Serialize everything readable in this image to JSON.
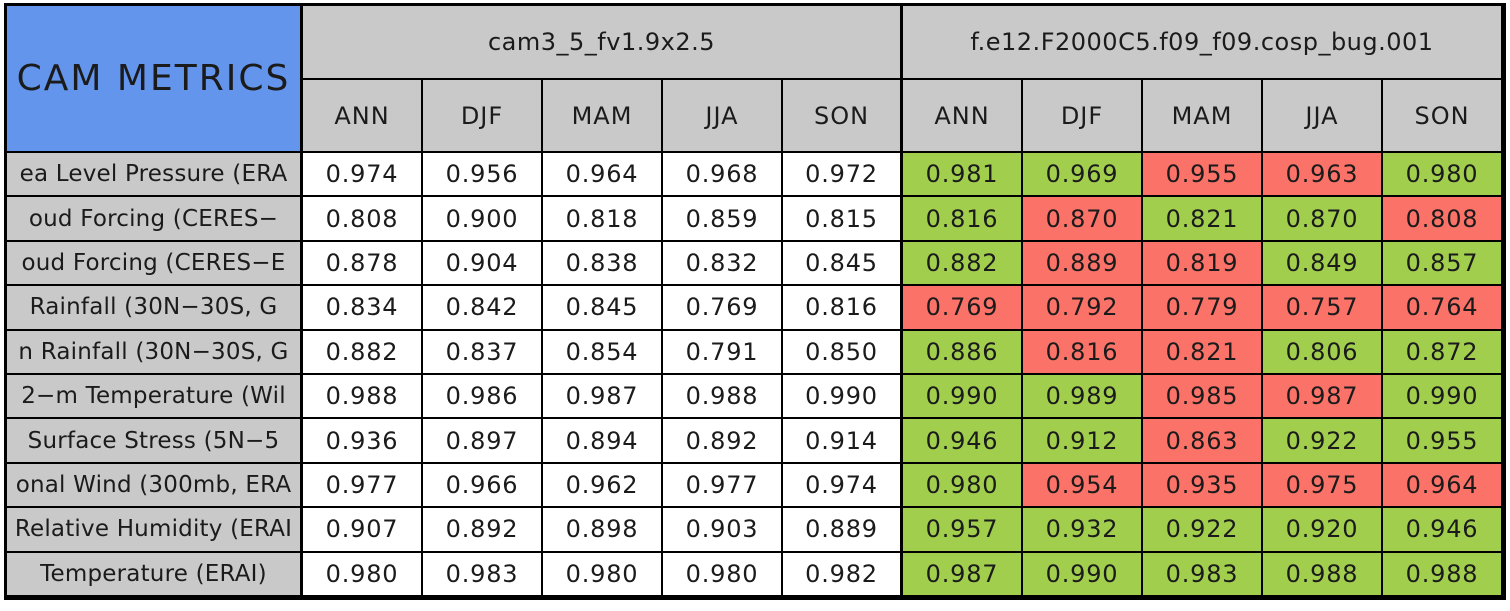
{
  "colors": {
    "title_blue": "#6495ED",
    "header_gray": "#C9C9C9",
    "improved_green": "#A2CE4E",
    "degraded_red": "#FA7268",
    "neutral_white": "#FFFFFF",
    "border_black": "#000000"
  },
  "chart_data": {
    "type": "table",
    "title": "CAM METRICS",
    "column_groups": [
      "cam3_5_fv1.9x2.5",
      "f.e12.F2000C5.f09_f09.cosp_bug.001"
    ],
    "seasons": [
      "ANN",
      "DJF",
      "MAM",
      "JJA",
      "SON"
    ],
    "rows": [
      {
        "metric": "ea Level Pressure (ERA",
        "model1_values": [
          "0.974",
          "0.956",
          "0.964",
          "0.968",
          "0.972"
        ],
        "model2_values": [
          "0.981",
          "0.969",
          "0.955",
          "0.963",
          "0.980"
        ],
        "model2_flags": [
          "green",
          "green",
          "red",
          "red",
          "green"
        ]
      },
      {
        "metric": "oud Forcing (CERES−",
        "model1_values": [
          "0.808",
          "0.900",
          "0.818",
          "0.859",
          "0.815"
        ],
        "model2_values": [
          "0.816",
          "0.870",
          "0.821",
          "0.870",
          "0.808"
        ],
        "model2_flags": [
          "green",
          "red",
          "green",
          "green",
          "red"
        ]
      },
      {
        "metric": "oud Forcing (CERES−E",
        "model1_values": [
          "0.878",
          "0.904",
          "0.838",
          "0.832",
          "0.845"
        ],
        "model2_values": [
          "0.882",
          "0.889",
          "0.819",
          "0.849",
          "0.857"
        ],
        "model2_flags": [
          "green",
          "red",
          "red",
          "green",
          "green"
        ]
      },
      {
        "metric": "Rainfall (30N−30S, G",
        "model1_values": [
          "0.834",
          "0.842",
          "0.845",
          "0.769",
          "0.816"
        ],
        "model2_values": [
          "0.769",
          "0.792",
          "0.779",
          "0.757",
          "0.764"
        ],
        "model2_flags": [
          "red",
          "red",
          "red",
          "red",
          "red"
        ]
      },
      {
        "metric": "n Rainfall (30N−30S, G",
        "model1_values": [
          "0.882",
          "0.837",
          "0.854",
          "0.791",
          "0.850"
        ],
        "model2_values": [
          "0.886",
          "0.816",
          "0.821",
          "0.806",
          "0.872"
        ],
        "model2_flags": [
          "green",
          "red",
          "red",
          "green",
          "green"
        ]
      },
      {
        "metric": "2−m Temperature (Wil",
        "model1_values": [
          "0.988",
          "0.986",
          "0.987",
          "0.988",
          "0.990"
        ],
        "model2_values": [
          "0.990",
          "0.989",
          "0.985",
          "0.987",
          "0.990"
        ],
        "model2_flags": [
          "green",
          "green",
          "red",
          "red",
          "green"
        ]
      },
      {
        "metric": "Surface Stress (5N−5",
        "model1_values": [
          "0.936",
          "0.897",
          "0.894",
          "0.892",
          "0.914"
        ],
        "model2_values": [
          "0.946",
          "0.912",
          "0.863",
          "0.922",
          "0.955"
        ],
        "model2_flags": [
          "green",
          "green",
          "red",
          "green",
          "green"
        ]
      },
      {
        "metric": "onal Wind (300mb, ERA",
        "model1_values": [
          "0.977",
          "0.966",
          "0.962",
          "0.977",
          "0.974"
        ],
        "model2_values": [
          "0.980",
          "0.954",
          "0.935",
          "0.975",
          "0.964"
        ],
        "model2_flags": [
          "green",
          "red",
          "red",
          "red",
          "red"
        ]
      },
      {
        "metric": "Relative Humidity (ERAI",
        "model1_values": [
          "0.907",
          "0.892",
          "0.898",
          "0.903",
          "0.889"
        ],
        "model2_values": [
          "0.957",
          "0.932",
          "0.922",
          "0.920",
          "0.946"
        ],
        "model2_flags": [
          "green",
          "green",
          "green",
          "green",
          "green"
        ]
      },
      {
        "metric": "Temperature (ERAI)",
        "model1_values": [
          "0.980",
          "0.983",
          "0.980",
          "0.980",
          "0.982"
        ],
        "model2_values": [
          "0.987",
          "0.990",
          "0.983",
          "0.988",
          "0.988"
        ],
        "model2_flags": [
          "green",
          "green",
          "green",
          "green",
          "green"
        ]
      }
    ]
  }
}
